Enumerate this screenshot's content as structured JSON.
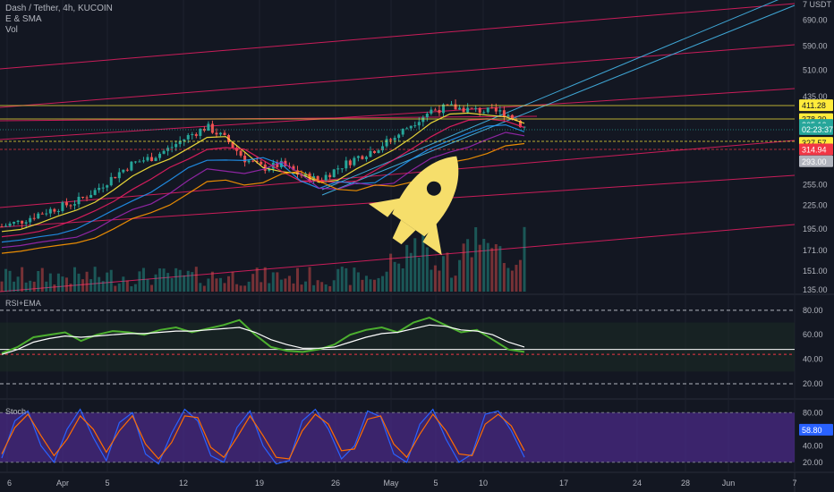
{
  "header": {
    "title": "Dash / Tether, 4h, KUCOIN",
    "indicator_1": "E & SMA",
    "indicator_2": "Vol"
  },
  "panes": {
    "rsi_label": "RSI+EMA",
    "stoch_label": "Stoch"
  },
  "chart_data": [
    {
      "type": "line",
      "pane": "price",
      "title": "Dash / Tether, 4h, KUCOIN",
      "y_scale": "log",
      "ylim": [
        132,
        780
      ],
      "y_tick_labels": [
        "7 USDT",
        "690.00",
        "590.00",
        "510.00",
        "435.00",
        "255.00",
        "225.00",
        "195.00",
        "171.00",
        "151.00",
        "135.00"
      ],
      "y_ticks": [
        760,
        690,
        590,
        510,
        435,
        255,
        225,
        195,
        171,
        151,
        135
      ],
      "x_tick_labels": [
        "6",
        "Apr",
        "5",
        "12",
        "19",
        "26",
        "May",
        "5",
        "10",
        "17",
        "24",
        "28",
        "Jun",
        "7"
      ],
      "series": [
        {
          "values": [
            198,
            204,
            214,
            222,
            230,
            246,
            268,
            290,
            300,
            318,
            342,
            362,
            336,
            298,
            282,
            288,
            270,
            262,
            282,
            300,
            316,
            338,
            370,
            400,
            408,
            402,
            398,
            394,
            362
          ]
        }
      ],
      "price_tags": [
        {
          "label": "411.28",
          "value": 411.28,
          "color": "#ffeb3b"
        },
        {
          "label": "378.30",
          "value": 378.3,
          "color": "#ffeb3b"
        },
        {
          "label": "365.16",
          "value": 365.16,
          "color": "#26a69a"
        },
        {
          "label": "02:23:37",
          "value": 356,
          "color": "#26a69a"
        },
        {
          "label": "327.57",
          "value": 327.57,
          "color": "#ffeb3b"
        },
        {
          "label": "314.94",
          "value": 314.94,
          "color": "#f23645"
        },
        {
          "label": "293.00",
          "value": 293,
          "color": "#b2b5be"
        }
      ]
    },
    {
      "type": "line",
      "pane": "rsi",
      "title": "RSI+EMA",
      "ylim": [
        12,
        85
      ],
      "y_tick_labels": [
        "80.00",
        "60.00",
        "40.00",
        "20.00"
      ],
      "y_ticks": [
        80,
        60,
        40,
        20
      ],
      "series": [
        {
          "values": [
            45,
            50,
            58,
            60,
            62,
            55,
            60,
            63,
            62,
            60,
            64,
            66,
            62,
            65,
            68,
            72,
            60,
            50,
            47,
            46,
            48,
            52,
            60,
            64,
            66,
            62,
            70,
            74,
            68,
            62,
            64,
            56,
            48,
            46
          ]
        },
        {
          "values": [
            44,
            48,
            54,
            57,
            59,
            58,
            59,
            60,
            61,
            61,
            62,
            63,
            63,
            64,
            65,
            66,
            62,
            56,
            52,
            49,
            49,
            50,
            54,
            58,
            61,
            62,
            65,
            68,
            67,
            64,
            63,
            60,
            54,
            50
          ]
        }
      ]
    },
    {
      "type": "line",
      "pane": "stoch",
      "title": "Stoch",
      "ylim": [
        10,
        90
      ],
      "y_tick_labels": [
        "80.00",
        "60.00",
        "40.00",
        "20.00"
      ],
      "y_ticks": [
        80,
        60,
        40,
        20
      ],
      "price_tags": [
        {
          "label": "58.80",
          "value": 58.8,
          "color": "#2962ff"
        }
      ],
      "series": [
        {
          "values": [
            25,
            70,
            82,
            40,
            20,
            60,
            84,
            50,
            22,
            68,
            80,
            30,
            18,
            55,
            84,
            70,
            28,
            20,
            62,
            82,
            40,
            18,
            22,
            70,
            84,
            60,
            24,
            40,
            82,
            75,
            30,
            20,
            66,
            84,
            48,
            20,
            30,
            78,
            82,
            58,
            26
          ]
        },
        {
          "values": [
            30,
            62,
            78,
            52,
            28,
            48,
            76,
            60,
            32,
            58,
            76,
            42,
            24,
            44,
            76,
            74,
            38,
            26,
            50,
            76,
            52,
            26,
            24,
            58,
            78,
            66,
            34,
            36,
            72,
            76,
            42,
            26,
            54,
            78,
            58,
            30,
            28,
            66,
            78,
            64,
            34
          ]
        }
      ]
    }
  ],
  "colors": {
    "background": "#131722",
    "bull": "#26a69a",
    "bear": "#ef5350",
    "rsi_line": "#4caf2f",
    "rsi_ema": "#ffffff",
    "stoch_k": "#2962ff",
    "stoch_d": "#ff6d00",
    "channel": "#e91e63",
    "trend_cyan": "#3fa7d6",
    "rocket": "#f6de6b"
  },
  "icons": {
    "rocket": "rocket-icon"
  }
}
